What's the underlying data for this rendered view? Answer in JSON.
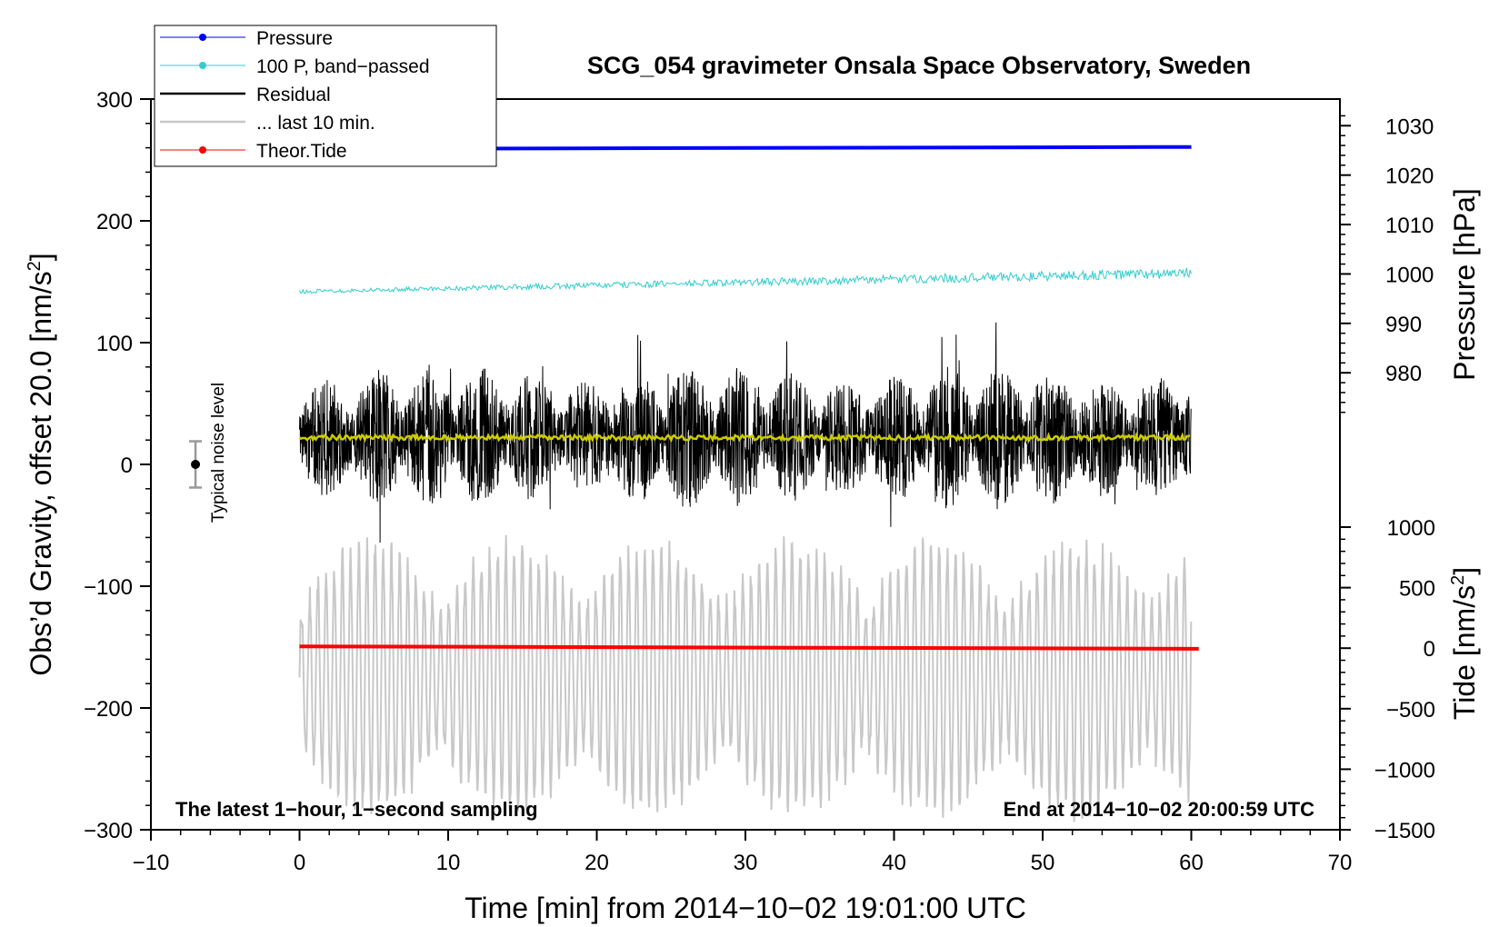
{
  "chart_data": {
    "type": "line",
    "title": "SCG_054 gravimeter Onsala Space Observatory, Sweden",
    "xlabel": "Time [min] from 2014−10−02 19:01:00 UTC",
    "ylabel_left": "Obs’d Gravity, offset 20.0 [nm/s",
    "ylabel_right_top": "Pressure [hPa]",
    "ylabel_right_bottom": "Tide [nm/s",
    "superscript": "2",
    "ylabel_suffix": "]",
    "xlim": [
      -10,
      70
    ],
    "ylim": [
      -300,
      300
    ],
    "pressure_lim": [
      969,
      1033
    ],
    "tide_lim": [
      -1500,
      1000
    ],
    "x_ticks": [
      -10,
      0,
      10,
      20,
      30,
      40,
      50,
      60,
      70
    ],
    "x_tick_labels": [
      "−10",
      "0",
      "10",
      "20",
      "30",
      "40",
      "50",
      "60",
      "70"
    ],
    "y_ticks": [
      -300,
      -200,
      -100,
      0,
      100,
      200,
      300
    ],
    "y_tick_labels": [
      "−300",
      "−200",
      "−100",
      "0",
      "100",
      "200",
      "300"
    ],
    "pressure_ticks": [
      980,
      990,
      1000,
      1010,
      1020,
      1030
    ],
    "pressure_tick_labels": [
      "980",
      "990",
      "1000",
      "1010",
      "1020",
      "1030"
    ],
    "tide_ticks": [
      -1500,
      -1000,
      -500,
      0,
      500,
      1000
    ],
    "tide_tick_labels": [
      "−1500",
      "−1000",
      "−500",
      "0",
      "500",
      "1000"
    ],
    "legend": [
      {
        "name": "Pressure",
        "color": "#0000ff",
        "marker": true
      },
      {
        "name": "100 P, band−passed",
        "color": "#33cccc",
        "marker": true
      },
      {
        "name": "Residual",
        "color": "#000000",
        "marker": false
      },
      {
        "name": "... last 10 min.",
        "color": "#c8c8c8",
        "marker": false
      },
      {
        "name": "Theor.Tide",
        "color": "#ff0000",
        "marker": true
      }
    ],
    "series": [
      {
        "name": "Pressure",
        "axis": "pressure",
        "x_range": [
          0,
          60
        ],
        "start": 1025.3,
        "end": 1025.7,
        "color": "#0000ff"
      },
      {
        "name": "100 P, band−passed",
        "axis": "left",
        "x_range": [
          0,
          60
        ],
        "start": 142,
        "end": 157,
        "noise": 3,
        "color": "#33cccc"
      },
      {
        "name": "Residual",
        "axis": "left",
        "x_range": [
          0,
          60
        ],
        "center": 22,
        "amplitude": 60,
        "color": "#000000"
      },
      {
        "name": "Residual mean",
        "axis": "left",
        "x_range": [
          0,
          60
        ],
        "value": 22,
        "color": "#cccc00"
      },
      {
        "name": "... last 10 min.",
        "axis": "left",
        "x_range": [
          0,
          60
        ],
        "center": -175,
        "amplitude": 100,
        "color": "#c8c8c8"
      },
      {
        "name": "Theor.Tide",
        "axis": "tide",
        "x_range": [
          0,
          60.5
        ],
        "start": 15,
        "end": -5,
        "color": "#ff0000"
      }
    ],
    "noise_indicator": {
      "x": -7,
      "center": 0,
      "half_width": 19,
      "label": "Typical noise level"
    },
    "annotation_left": "The latest 1−hour, 1−second sampling",
    "annotation_right": "End at 2014−10−02 20:00:59 UTC"
  }
}
